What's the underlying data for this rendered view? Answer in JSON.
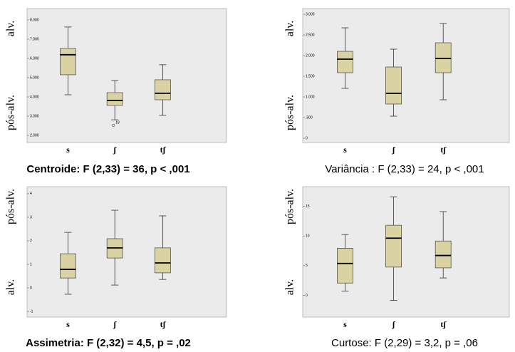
{
  "chart_data": [
    {
      "type": "box",
      "caption": "Centroide: F (2,33) = 36, p < ,001",
      "label_top": "alv.",
      "label_bottom": "pós-alv.",
      "categories": [
        "s",
        "ʃ",
        "tʃ"
      ],
      "color": "#d9d3a3",
      "stats": [
        {
          "min": 4110,
          "q1": 5150,
          "median": 6190,
          "q3": 6520,
          "max": 7630
        },
        {
          "min": 2810,
          "q1": 3560,
          "median": 3810,
          "q3": 4220,
          "max": 4850
        },
        {
          "min": 3040,
          "q1": 3850,
          "median": 4190,
          "q3": 4890,
          "max": 5670
        }
      ],
      "outliers": [
        {
          "category": 1,
          "value": 2520,
          "label": "18"
        }
      ],
      "ylim": [
        1630,
        8590
      ],
      "yticks": [
        {
          "value": 2000,
          "label": "2.000"
        },
        {
          "value": 3000,
          "label": "3.000"
        },
        {
          "value": 4000,
          "label": "4.000"
        },
        {
          "value": 5000,
          "label": "5.000"
        },
        {
          "value": 6000,
          "label": "6.000"
        },
        {
          "value": 7000,
          "label": "7.000"
        },
        {
          "value": 8000,
          "label": "8.000"
        }
      ]
    },
    {
      "type": "box",
      "caption": "Variância : F (2,33) = 24, p < ,001",
      "label_top": "alv.",
      "label_bottom": "pós-alv.",
      "categories": [
        "s",
        "ʃ",
        "tʃ"
      ],
      "color": "#d9d3a3",
      "stats": [
        {
          "min": 1207,
          "q1": 1586,
          "median": 1914,
          "q3": 2103,
          "max": 2672
        },
        {
          "min": 534,
          "q1": 828,
          "median": 1086,
          "q3": 1724,
          "max": 2155
        },
        {
          "min": 931,
          "q1": 1586,
          "median": 1931,
          "q3": 2310,
          "max": 2776
        }
      ],
      "outliers": [],
      "ylim": [
        -103,
        3138
      ],
      "yticks": [
        0,
        {
          "value": 500,
          "label": ",500"
        },
        {
          "value": 1000,
          "label": "1.000"
        },
        {
          "value": 1500,
          "label": "1.500"
        },
        {
          "value": 2000,
          "label": "2.000"
        },
        {
          "value": 2500,
          "label": "2.500"
        },
        {
          "value": 3000,
          "label": "3.000"
        }
      ]
    },
    {
      "type": "box",
      "caption": "Assimetria: F (2,32) = 4,5, p = ,02",
      "label_top": "pós-alv.",
      "label_bottom": "alv.",
      "categories": [
        "s",
        "ʃ",
        "tʃ"
      ],
      "color": "#d9d3a3",
      "stats": [
        {
          "min": -0.27,
          "q1": 0.42,
          "median": 0.79,
          "q3": 1.45,
          "max": 2.36
        },
        {
          "min": 0.12,
          "q1": 1.27,
          "median": 1.7,
          "q3": 2.09,
          "max": 3.3
        },
        {
          "min": 0.36,
          "q1": 0.64,
          "median": 1.06,
          "q3": 1.7,
          "max": 3.06
        }
      ],
      "outliers": [],
      "ylim": [
        -1.24,
        4.3
      ],
      "yticks": [
        -1,
        0,
        1,
        2,
        3,
        4
      ]
    },
    {
      "type": "box",
      "caption": "Curtose: F (2,29) = 3,2, p = ,06",
      "label_top": "pós-alv.",
      "label_bottom": "alv.",
      "categories": [
        "s",
        "ʃ",
        "tʃ"
      ],
      "color": "#d9d3a3",
      "stats": [
        {
          "min": 0.73,
          "q1": 2.07,
          "median": 5.37,
          "q3": 7.93,
          "max": 10.24
        },
        {
          "min": -0.85,
          "q1": 4.76,
          "median": 9.63,
          "q3": 11.8,
          "max": 16.6
        },
        {
          "min": 2.93,
          "q1": 4.63,
          "median": 6.71,
          "q3": 9.15,
          "max": 14.1
        }
      ],
      "outliers": [],
      "ylim": [
        -3.66,
        18.3
      ],
      "yticks": [
        0,
        5,
        10,
        15
      ]
    }
  ]
}
